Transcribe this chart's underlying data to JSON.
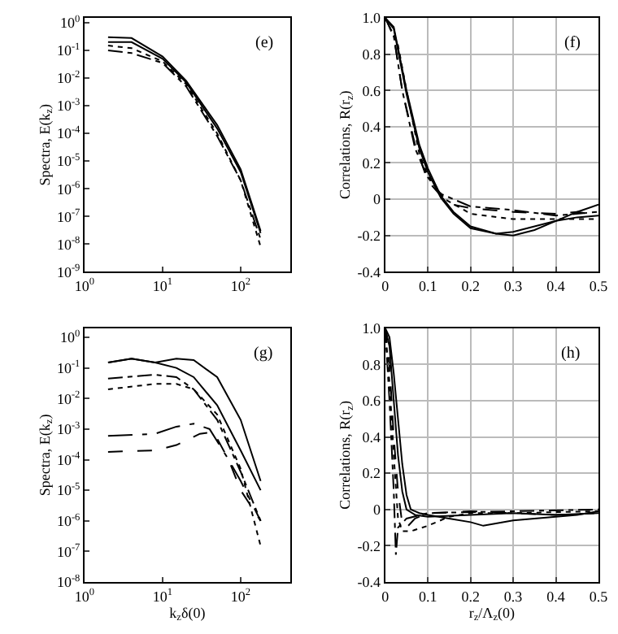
{
  "chart_data": [
    {
      "type": "line",
      "ylabel": "Spectra, E(k$_{z}$)",
      "log": "xy",
      "grid": false,
      "xlim": [
        1,
        430
      ],
      "ylim": [
        1e-09,
        1.5
      ],
      "xticks": [
        {
          "value": 1,
          "label": "10$^{0}$"
        },
        {
          "value": 10,
          "label": "10$^{1}$"
        },
        {
          "value": 100,
          "label": "10$^{2}$"
        }
      ],
      "yticks": [
        {
          "value": 1e-09,
          "label": "10$^{-9}$"
        },
        {
          "value": 1e-08,
          "label": "10$^{-8}$"
        },
        {
          "value": 1e-07,
          "label": "10$^{-7}$"
        },
        {
          "value": 1e-06,
          "label": "10$^{-6}$"
        },
        {
          "value": 1e-05,
          "label": "10$^{-5}$"
        },
        {
          "value": 0.0001,
          "label": "10$^{-4}$"
        },
        {
          "value": 0.001,
          "label": "10$^{-3}$"
        },
        {
          "value": 0.01,
          "label": "10$^{-2}$"
        },
        {
          "value": 0.1,
          "label": "10$^{-1}$"
        },
        {
          "value": 1,
          "label": "10$^{0}$"
        }
      ],
      "annotations": [
        "(e)"
      ],
      "series": [
        {
          "color": "#000000",
          "line_style": "solid",
          "x": [
            2,
            4,
            10,
            20,
            50,
            100,
            180
          ],
          "values": [
            0.3,
            0.28,
            0.06,
            0.008,
            0.0002,
            5e-06,
            3e-08
          ]
        },
        {
          "color": "#000000",
          "line_style": "solid",
          "x": [
            2,
            4,
            10,
            20,
            50,
            100,
            180
          ],
          "values": [
            0.2,
            0.2,
            0.05,
            0.007,
            0.00015,
            4e-06,
            2.5e-08
          ]
        },
        {
          "color": "#000000",
          "line_style": "dotted",
          "x": [
            2,
            4,
            10,
            20,
            50,
            100,
            180
          ],
          "values": [
            0.15,
            0.12,
            0.04,
            0.006,
            0.0001,
            2e-06,
            8e-09
          ]
        },
        {
          "color": "#000000",
          "line_style": "dashdot",
          "x": [
            2,
            4,
            10,
            20,
            50,
            100,
            180
          ],
          "values": [
            0.1,
            0.08,
            0.035,
            0.005,
            8e-05,
            2e-06,
            1.5e-08
          ]
        }
      ]
    },
    {
      "type": "line",
      "ylabel": "Correlations, R(r$_{z}$)",
      "grid": true,
      "xlim": [
        0,
        0.5
      ],
      "ylim": [
        -0.4,
        1.0
      ],
      "xticks": [
        0,
        0.1,
        0.2,
        0.3,
        0.4,
        0.5
      ],
      "yticks": [
        -0.4,
        -0.2,
        0,
        0.2,
        0.4,
        0.6,
        0.8,
        {
          "value": 1,
          "label": "1.0"
        }
      ],
      "annotations": [
        "(f)"
      ],
      "series": [
        {
          "color": "#000000",
          "line_style": "solid",
          "x": [
            0,
            0.02,
            0.05,
            0.08,
            0.1,
            0.13,
            0.16,
            0.2,
            0.26,
            0.3,
            0.35,
            0.4,
            0.45,
            0.5
          ],
          "values": [
            1,
            0.95,
            0.6,
            0.3,
            0.17,
            0.02,
            -0.07,
            -0.15,
            -0.19,
            -0.18,
            -0.15,
            -0.12,
            -0.1,
            -0.09
          ]
        },
        {
          "color": "#000000",
          "line_style": "solid",
          "x": [
            0,
            0.02,
            0.05,
            0.08,
            0.1,
            0.13,
            0.16,
            0.2,
            0.26,
            0.3,
            0.35,
            0.4,
            0.45,
            0.5
          ],
          "values": [
            1,
            0.94,
            0.58,
            0.28,
            0.15,
            0.01,
            -0.08,
            -0.16,
            -0.19,
            -0.2,
            -0.17,
            -0.12,
            -0.07,
            -0.03
          ]
        },
        {
          "color": "#000000",
          "line_style": "dashed",
          "x": [
            0,
            0.02,
            0.04,
            0.07,
            0.1,
            0.13,
            0.16,
            0.2,
            0.3,
            0.4,
            0.45,
            0.5
          ],
          "values": [
            1,
            0.9,
            0.6,
            0.3,
            0.1,
            0.02,
            -0.03,
            -0.05,
            -0.07,
            -0.08,
            -0.07,
            -0.09
          ]
        },
        {
          "color": "#000000",
          "line_style": "dotted",
          "x": [
            0,
            0.03,
            0.05,
            0.08,
            0.1,
            0.14,
            0.2,
            0.3,
            0.4,
            0.5
          ],
          "values": [
            1,
            0.85,
            0.6,
            0.25,
            0.13,
            0,
            -0.08,
            -0.11,
            -0.11,
            -0.11
          ]
        },
        {
          "color": "#000000",
          "line_style": "dashdot",
          "x": [
            0,
            0.02,
            0.04,
            0.07,
            0.1,
            0.13,
            0.2,
            0.3,
            0.4,
            0.5
          ],
          "values": [
            1,
            0.9,
            0.6,
            0.28,
            0.12,
            0.03,
            -0.04,
            -0.06,
            -0.09,
            -0.07
          ]
        }
      ]
    },
    {
      "type": "line",
      "xlabel": "k$_{z}$δ(0)",
      "ylabel": "Spectra, E(k$_{z}$)",
      "log": "xy",
      "grid": false,
      "xlim": [
        1,
        430
      ],
      "ylim": [
        1e-08,
        2
      ],
      "xticks": [
        {
          "value": 1,
          "label": "10$^{0}$"
        },
        {
          "value": 10,
          "label": "10$^{1}$"
        },
        {
          "value": 100,
          "label": "10$^{2}$"
        }
      ],
      "yticks": [
        {
          "value": 1e-08,
          "label": "10$^{-8}$"
        },
        {
          "value": 1e-07,
          "label": "10$^{-7}$"
        },
        {
          "value": 1e-06,
          "label": "10$^{-6}$"
        },
        {
          "value": 1e-05,
          "label": "10$^{-5}$"
        },
        {
          "value": 0.0001,
          "label": "10$^{-4}$"
        },
        {
          "value": 0.001,
          "label": "10$^{-3}$"
        },
        {
          "value": 0.01,
          "label": "10$^{-2}$"
        },
        {
          "value": 0.1,
          "label": "10$^{-1}$"
        },
        {
          "value": 1,
          "label": "10$^{0}$"
        }
      ],
      "annotations": [
        "(g)"
      ],
      "series": [
        {
          "color": "#000000",
          "line_style": "solid",
          "x": [
            2,
            4,
            8,
            15,
            25,
            50,
            100,
            180
          ],
          "values": [
            0.15,
            0.2,
            0.15,
            0.2,
            0.18,
            0.05,
            0.002,
            2e-05
          ]
        },
        {
          "color": "#000000",
          "line_style": "solid",
          "x": [
            2,
            4,
            8,
            15,
            25,
            50,
            100,
            180
          ],
          "values": [
            0.15,
            0.2,
            0.15,
            0.1,
            0.05,
            0.006,
            0.0002,
            1e-05
          ]
        },
        {
          "color": "#000000",
          "line_style": "dashdot",
          "x": [
            2,
            8,
            15,
            25,
            50,
            100,
            180
          ],
          "values": [
            0.045,
            0.06,
            0.05,
            0.02,
            0.002,
            4e-05,
            1e-06
          ]
        },
        {
          "color": "#000000",
          "line_style": "dotted",
          "x": [
            2,
            8,
            15,
            25,
            50,
            100,
            180
          ],
          "values": [
            0.02,
            0.03,
            0.03,
            0.02,
            0.003,
            5e-05,
            1.5e-07
          ]
        },
        {
          "color": "#000000",
          "line_style": "longdashdot",
          "x": [
            2,
            8,
            15,
            25,
            40,
            70,
            100,
            180
          ],
          "values": [
            0.0006,
            0.0007,
            0.0012,
            0.0015,
            0.001,
            0.0001,
            2e-05,
            1e-06
          ]
        },
        {
          "color": "#000000",
          "line_style": "dashed",
          "x": [
            2,
            8,
            15,
            30,
            45,
            70,
            100,
            180
          ],
          "values": [
            0.00018,
            0.0002,
            0.0003,
            0.0007,
            0.0008,
            0.0001,
            1e-05,
            1e-06
          ]
        }
      ]
    },
    {
      "type": "line",
      "xlabel": "r$_{z}$/Λ$_{z}$(0)",
      "ylabel": "Correlations, R(r$_{z}$)",
      "grid": true,
      "xlim": [
        0,
        0.5
      ],
      "ylim": [
        -0.4,
        1.0
      ],
      "xticks": [
        0,
        0.1,
        0.2,
        0.3,
        0.4,
        0.5
      ],
      "yticks": [
        -0.4,
        -0.2,
        0,
        0.2,
        0.4,
        0.6,
        0.8,
        {
          "value": 1,
          "label": "1.0"
        }
      ],
      "annotations": [
        "(h)"
      ],
      "series": [
        {
          "color": "#000000",
          "line_style": "solid",
          "x": [
            0,
            0.01,
            0.02,
            0.03,
            0.04,
            0.05,
            0.06,
            0.08,
            0.1,
            0.15,
            0.2,
            0.23,
            0.3,
            0.4,
            0.45,
            0.5
          ],
          "values": [
            1,
            0.95,
            0.75,
            0.5,
            0.25,
            0.08,
            0,
            -0.02,
            -0.03,
            -0.05,
            -0.07,
            -0.09,
            -0.06,
            -0.04,
            -0.03,
            -0.01
          ]
        },
        {
          "color": "#000000",
          "line_style": "solid",
          "x": [
            0,
            0.01,
            0.02,
            0.03,
            0.04,
            0.05,
            0.07,
            0.1,
            0.2,
            0.3,
            0.4,
            0.5
          ],
          "values": [
            1,
            0.9,
            0.6,
            0.3,
            0.1,
            0,
            -0.03,
            -0.04,
            -0.03,
            -0.02,
            -0.03,
            -0.02
          ]
        },
        {
          "color": "#000000",
          "line_style": "dashed",
          "x": [
            0,
            0.01,
            0.02,
            0.03,
            0.04,
            0.05,
            0.07,
            0.1,
            0.2,
            0.3,
            0.4,
            0.5
          ],
          "values": [
            1,
            0.8,
            0.4,
            0.1,
            -0.08,
            -0.1,
            -0.05,
            -0.02,
            -0.01,
            -0.02,
            -0.03,
            -0.02
          ]
        },
        {
          "color": "#000000",
          "line_style": "dotted",
          "x": [
            0,
            0.01,
            0.02,
            0.03,
            0.04,
            0.06,
            0.1,
            0.15,
            0.2,
            0.3,
            0.5
          ],
          "values": [
            1,
            0.7,
            0.3,
            -0.05,
            -0.12,
            -0.12,
            -0.09,
            -0.04,
            -0.02,
            -0.02,
            -0.01
          ]
        },
        {
          "color": "#000000",
          "line_style": "dashdot",
          "x": [
            0,
            0.01,
            0.02,
            0.025,
            0.03,
            0.05,
            0.1,
            0.3,
            0.5
          ],
          "values": [
            1,
            0.6,
            0.1,
            -0.25,
            -0.1,
            -0.05,
            -0.02,
            -0.01,
            0
          ]
        }
      ]
    }
  ]
}
